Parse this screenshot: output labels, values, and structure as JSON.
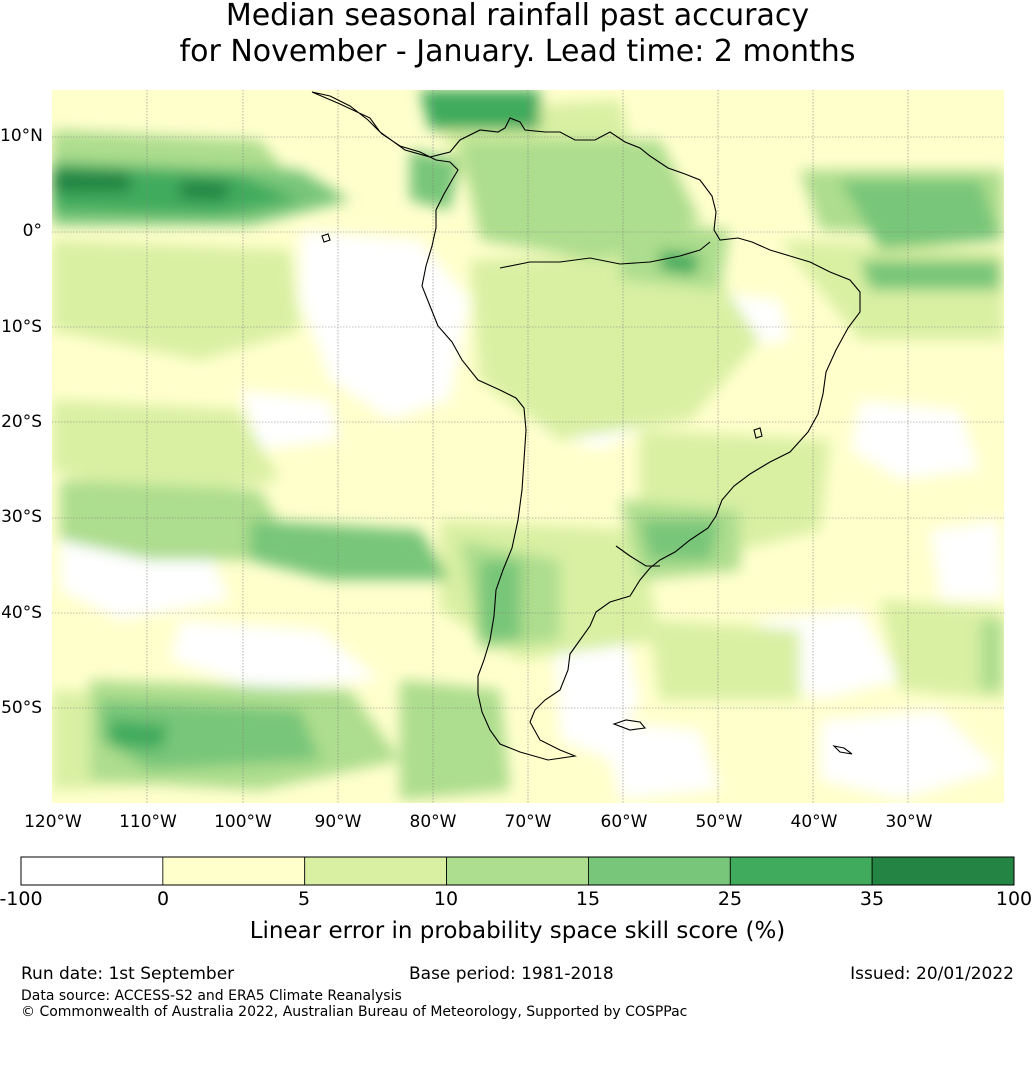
{
  "title": {
    "line1": "Median seasonal rainfall past accuracy",
    "line2": "for November - January. Lead time: 2 months"
  },
  "map": {
    "lat_labels": [
      "10°N",
      "0°",
      "10°S",
      "20°S",
      "30°S",
      "40°S",
      "50°S"
    ],
    "lon_labels": [
      "120°W",
      "110°W",
      "100°W",
      "90°W",
      "80°W",
      "70°W",
      "60°W",
      "50°W",
      "40°W",
      "30°W"
    ],
    "background_color": "#ffffcc",
    "coastline_color": "#000000"
  },
  "colorbar": {
    "label": "Linear error in probability space skill score (%)",
    "ticks": [
      "-100",
      "0",
      "5",
      "10",
      "15",
      "25",
      "35",
      "100"
    ],
    "bins": [
      {
        "range": "-100 to 0",
        "color": "#ffffff"
      },
      {
        "range": "0 to 5",
        "color": "#ffffcc"
      },
      {
        "range": "5 to 10",
        "color": "#d9f0a3"
      },
      {
        "range": "10 to 15",
        "color": "#addd8e"
      },
      {
        "range": "15 to 25",
        "color": "#78c679"
      },
      {
        "range": "25 to 35",
        "color": "#41ab5d"
      },
      {
        "range": "35 to 100",
        "color": "#238443"
      }
    ]
  },
  "footer": {
    "run_date": "Run date: 1st September",
    "base_period": "Base period: 1981-2018",
    "issued": "Issued: 20/01/2022",
    "data_source": "Data source: ACCESS-S2 and ERA5 Climate Reanalysis",
    "copyright": "© Commonwealth of Australia 2022, Australian Bureau of Meteorology, Supported by COSPPac"
  }
}
